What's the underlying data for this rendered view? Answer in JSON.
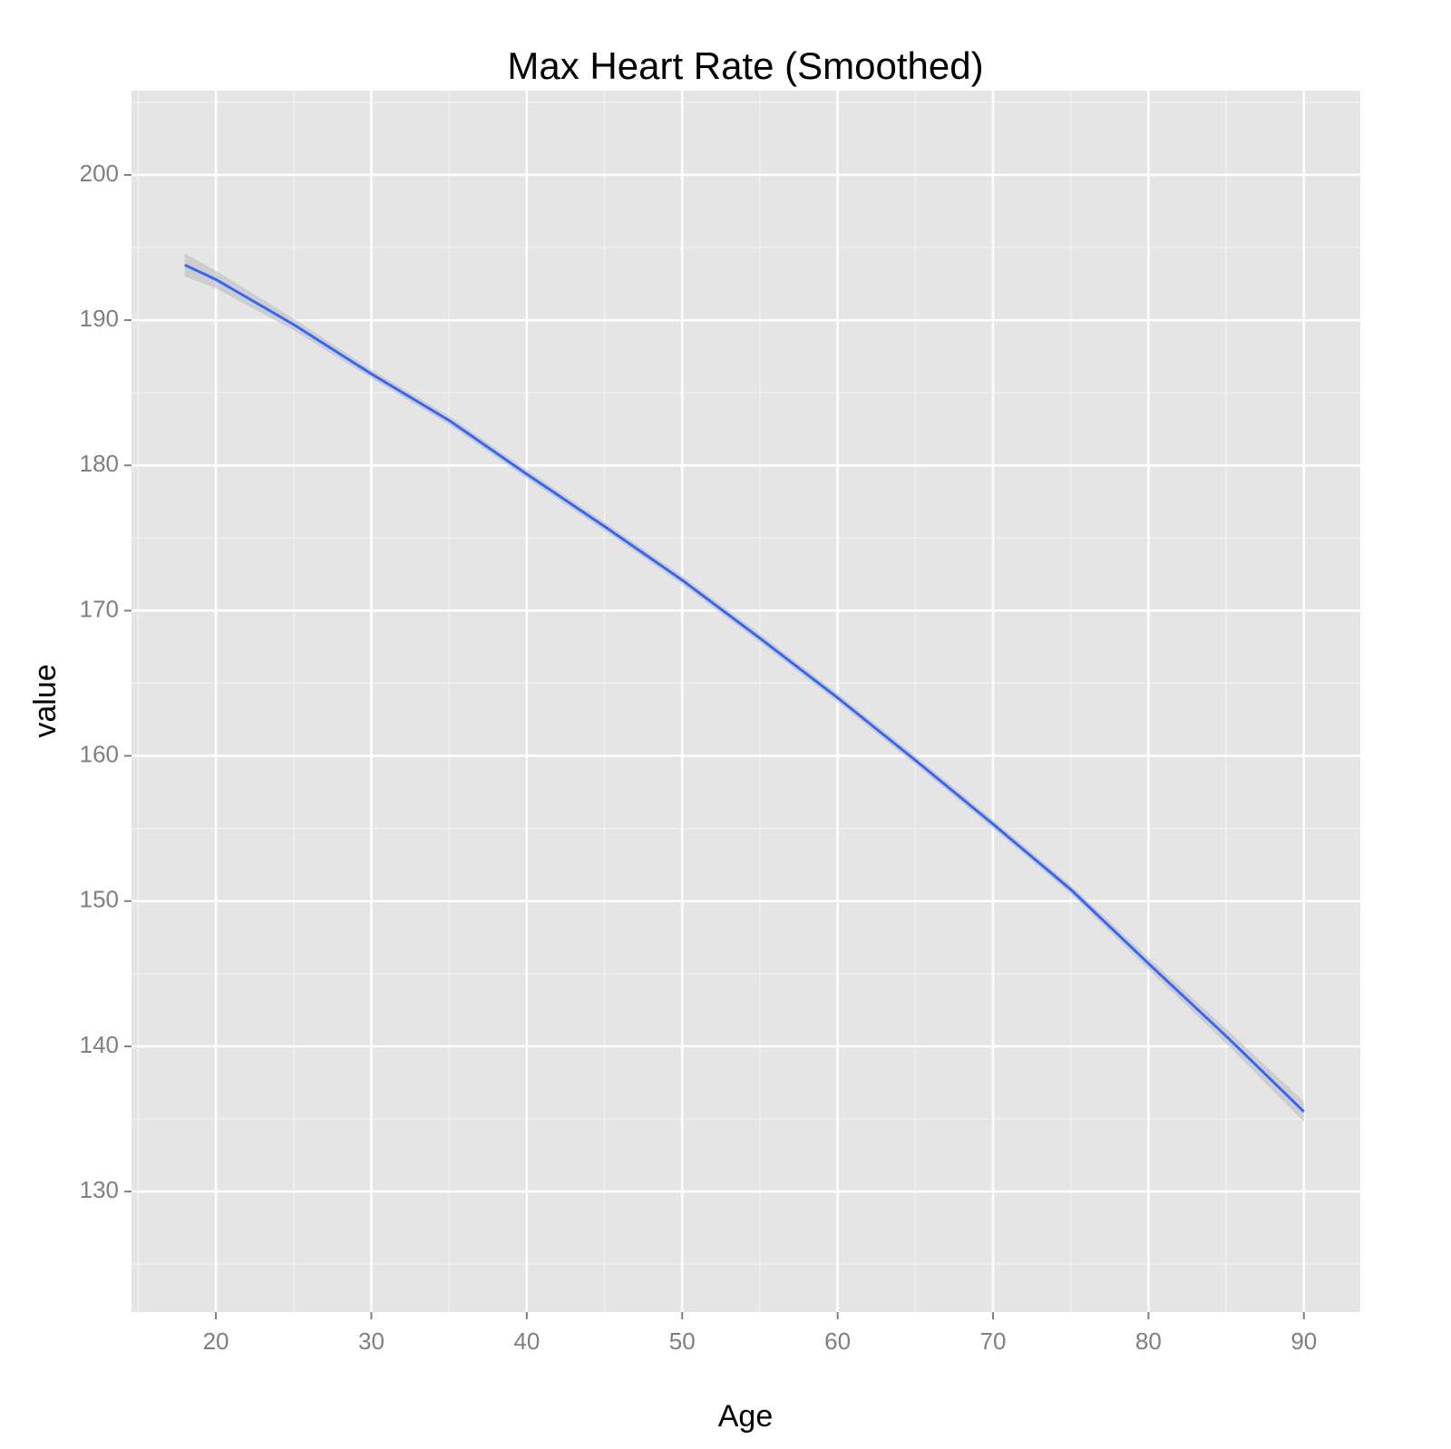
{
  "chart_data": {
    "type": "line",
    "title": "Max Heart Rate (Smoothed)",
    "x_label": "Age",
    "y_label": "value",
    "x": [
      18,
      20,
      25,
      30,
      35,
      40,
      45,
      50,
      55,
      60,
      65,
      70,
      75,
      80,
      85,
      90
    ],
    "values": [
      193.8,
      192.8,
      189.7,
      186.3,
      183.1,
      179.4,
      175.8,
      172.1,
      168.1,
      164.0,
      159.7,
      155.3,
      150.8,
      145.7,
      140.7,
      135.5
    ],
    "lower": [
      193.0,
      192.2,
      189.3,
      186.0,
      182.8,
      179.1,
      175.5,
      171.8,
      167.8,
      163.7,
      159.4,
      155.0,
      150.5,
      145.3,
      140.2,
      134.8
    ],
    "upper": [
      194.6,
      193.4,
      190.1,
      186.6,
      183.4,
      179.7,
      176.1,
      172.4,
      168.4,
      164.3,
      160.0,
      155.6,
      151.1,
      146.1,
      141.2,
      136.2
    ],
    "color": "#3366ff",
    "band_color": "#bdbdbd",
    "xlim": [
      14.57,
      93.63
    ],
    "ylim": [
      121.7,
      205.8
    ],
    "xticks": [
      20,
      30,
      40,
      50,
      60,
      70,
      80,
      90
    ],
    "yticks": [
      130,
      140,
      150,
      160,
      170,
      180,
      190,
      200
    ],
    "x_minor_ticks": [
      15,
      25,
      35,
      45,
      55,
      65,
      75,
      85
    ],
    "y_minor_ticks": [
      125,
      135,
      145,
      155,
      165,
      175,
      185,
      195,
      205
    ],
    "grid": true
  }
}
